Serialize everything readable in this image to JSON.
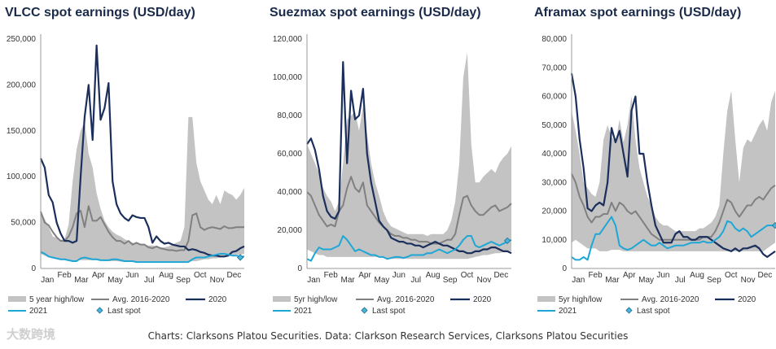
{
  "caption": "Charts: Clarksons Platou Securities. Data: Clarkson Research Services, Clarksons Platou Securities",
  "watermark": "大数跨境",
  "colors": {
    "band": "#c3c3c3",
    "avg": "#808080",
    "y2020": "#1b2f5c",
    "y2021": "#1ea7d6",
    "last": "#4ab3dc"
  },
  "chart_data": [
    {
      "type": "line",
      "title": "VLCC spot earnings (USD/day)",
      "ylim": [
        0,
        250000
      ],
      "yticks": [
        "0",
        "50,000",
        "100,000",
        "150,000",
        "200,000",
        "250,000"
      ],
      "month_labels": [
        "Jan",
        "Feb",
        "Mar",
        "Apr",
        "May",
        "Jun",
        "Jul",
        "Aug",
        "Sep",
        "Oct",
        "Nov",
        "Dec"
      ],
      "weeks": 52,
      "legend": [
        "5 year high/low",
        "Avg. 2016-2020",
        "2020",
        "2021",
        "Last spot"
      ],
      "band_high": [
        62000,
        54000,
        45000,
        35000,
        33000,
        31000,
        32000,
        48000,
        95000,
        130000,
        150000,
        160000,
        125000,
        110000,
        82000,
        65000,
        52000,
        45000,
        40000,
        37000,
        35000,
        32000,
        30000,
        28000,
        27000,
        26000,
        25000,
        25000,
        25000,
        24000,
        23000,
        23000,
        24000,
        26000,
        28000,
        30000,
        45000,
        165000,
        165000,
        115000,
        95000,
        85000,
        75000,
        70000,
        80000,
        70000,
        85000,
        82000,
        80000,
        75000,
        80000,
        88000
      ],
      "band_low": [
        16000,
        14000,
        12000,
        11000,
        10000,
        9000,
        9000,
        8000,
        8000,
        9000,
        9000,
        9000,
        9000,
        9000,
        9000,
        8500,
        8000,
        8000,
        8000,
        8000,
        7500,
        7000,
        7000,
        7000,
        7000,
        7000,
        7000,
        7000,
        7000,
        7000,
        7000,
        7000,
        7000,
        7000,
        7000,
        7000,
        7000,
        7000,
        8000,
        8000,
        9000,
        10000,
        10000,
        11000,
        11000,
        12000,
        13000,
        14000,
        14000,
        15000,
        15000,
        16000
      ],
      "avg": [
        62000,
        50000,
        47000,
        40000,
        34000,
        30000,
        30000,
        35000,
        45000,
        60000,
        63000,
        45000,
        68000,
        52000,
        52000,
        56000,
        48000,
        40000,
        34000,
        30000,
        30000,
        27000,
        30000,
        26000,
        28000,
        26000,
        26000,
        23000,
        22000,
        24000,
        22000,
        21000,
        20000,
        20000,
        19000,
        20000,
        20000,
        30000,
        58000,
        60000,
        45000,
        42000,
        44000,
        45000,
        44000,
        43000,
        46000,
        44000,
        44000,
        45000,
        45000,
        45000
      ],
      "y2020": [
        120000,
        110000,
        80000,
        72000,
        50000,
        38000,
        30000,
        30000,
        28000,
        30000,
        100000,
        165000,
        200000,
        140000,
        243000,
        162000,
        175000,
        202000,
        95000,
        70000,
        60000,
        55000,
        52000,
        58000,
        56000,
        55000,
        55000,
        45000,
        28000,
        35000,
        30000,
        27000,
        28000,
        26000,
        25000,
        24000,
        24000,
        20000,
        21000,
        20000,
        18000,
        17000,
        15000,
        14000,
        14000,
        13000,
        13000,
        14000,
        18000,
        19000,
        22000,
        24000
      ],
      "y2021": [
        18000,
        16000,
        13000,
        12000,
        11000,
        10000,
        10000,
        9000,
        8000,
        8000,
        11000,
        12000,
        11000,
        10000,
        10000,
        9000,
        9000,
        9000,
        10000,
        10000,
        9000,
        8000,
        8000,
        8000,
        7000,
        7000,
        7000,
        7000,
        7000,
        7000,
        7000,
        7000,
        7000,
        7000,
        7000,
        7000,
        7000,
        7000,
        10000,
        12000,
        12000,
        12000,
        13000,
        14000,
        15000,
        16000,
        16000,
        15000,
        14000,
        14000,
        13000,
        13000
      ],
      "last_spot": [
        50,
        12000
      ]
    },
    {
      "type": "line",
      "title": "Suezmax spot earnings (USD/day)",
      "ylim": [
        0,
        120000
      ],
      "yticks": [
        "0",
        "20,000",
        "40,000",
        "60,000",
        "80,000",
        "100,000",
        "120,000"
      ],
      "month_labels": [
        "Jan",
        "Feb",
        "Mar",
        "Apr",
        "May",
        "Jun",
        "Jul",
        "Aug",
        "Sep",
        "Oct",
        "Nov",
        "Dec"
      ],
      "weeks": 52,
      "legend": [
        "5yr high/low",
        "Avg. 2016-2020",
        "2020",
        "2021",
        "Last spot"
      ],
      "band_high": [
        65000,
        60000,
        55000,
        50000,
        42000,
        38000,
        35000,
        30000,
        35000,
        55000,
        78000,
        80000,
        82000,
        72000,
        85000,
        70000,
        55000,
        45000,
        38000,
        30000,
        25000,
        22000,
        21000,
        20000,
        19000,
        18000,
        18000,
        18000,
        18000,
        18000,
        17000,
        18000,
        18000,
        18000,
        18000,
        20000,
        25000,
        35000,
        55000,
        100000,
        113000,
        65000,
        45000,
        45000,
        48000,
        50000,
        52000,
        50000,
        55000,
        58000,
        60000,
        64000
      ],
      "band_low": [
        10000,
        9000,
        8000,
        7000,
        7000,
        6000,
        6000,
        6000,
        6000,
        6000,
        6000,
        6000,
        6000,
        6000,
        6000,
        6000,
        6000,
        6000,
        6000,
        5500,
        5000,
        5000,
        5000,
        5000,
        5000,
        5000,
        5000,
        5000,
        5000,
        5000,
        5000,
        5000,
        5000,
        5000,
        5000,
        5000,
        5000,
        5000,
        5000,
        5000,
        5000,
        5500,
        6000,
        6500,
        7000,
        7000,
        7500,
        8000,
        8000,
        8500,
        9000,
        9000
      ],
      "avg": [
        40000,
        38000,
        33000,
        28000,
        25000,
        22000,
        23000,
        22000,
        30000,
        33000,
        42000,
        48000,
        42000,
        40000,
        45000,
        33000,
        30000,
        27000,
        24000,
        22000,
        20000,
        18000,
        17000,
        17000,
        16000,
        16000,
        15000,
        15000,
        14000,
        14000,
        14000,
        13000,
        13000,
        13000,
        14000,
        15000,
        15000,
        18000,
        28000,
        37000,
        38000,
        33000,
        30000,
        28000,
        28000,
        30000,
        32000,
        33000,
        30000,
        31000,
        32000,
        34000
      ],
      "y2020": [
        65000,
        68000,
        62000,
        52000,
        38000,
        30000,
        27000,
        26000,
        30000,
        108000,
        55000,
        93000,
        78000,
        80000,
        94000,
        60000,
        45000,
        35000,
        25000,
        22000,
        20000,
        16000,
        15000,
        14000,
        14000,
        13000,
        13000,
        12000,
        12000,
        11000,
        12000,
        13000,
        14000,
        13000,
        12000,
        12000,
        11000,
        10000,
        9000,
        9000,
        8000,
        8000,
        9000,
        9000,
        10000,
        10000,
        11000,
        11000,
        10000,
        9000,
        9000,
        8000
      ],
      "y2021": [
        5000,
        4000,
        8000,
        11000,
        10000,
        10000,
        10000,
        11000,
        12000,
        17000,
        15000,
        12000,
        9000,
        10000,
        9000,
        8000,
        7000,
        7000,
        6000,
        6000,
        5000,
        5500,
        6000,
        6000,
        5500,
        6000,
        7000,
        7000,
        7000,
        7000,
        8000,
        8000,
        9000,
        10000,
        9000,
        8000,
        9000,
        10000,
        12000,
        15000,
        17000,
        17000,
        12000,
        11000,
        12000,
        13000,
        14000,
        13000,
        12000,
        13000,
        14000,
        15000
      ],
      "last_spot": [
        50,
        14500
      ]
    },
    {
      "type": "line",
      "title": "Aframax spot earnings (USD/day)",
      "ylim": [
        0,
        80000
      ],
      "yticks": [
        "0",
        "10,000",
        "20,000",
        "30,000",
        "40,000",
        "50,000",
        "60,000",
        "70,000",
        "80,000"
      ],
      "month_labels": [
        "Jan",
        "Feb",
        "Mar",
        "Apr",
        "May",
        "Jun",
        "Jul",
        "Aug",
        "Sep",
        "Oct",
        "Nov",
        "Dec"
      ],
      "weeks": 52,
      "legend": [
        "5yr high/low",
        "Avg. 2016-2020",
        "2020",
        "2021",
        "Last spot"
      ],
      "band_high": [
        55000,
        48000,
        40000,
        30000,
        28000,
        26000,
        25000,
        30000,
        45000,
        50000,
        46000,
        44000,
        52000,
        44000,
        50000,
        60000,
        45000,
        35000,
        30000,
        25000,
        22000,
        18000,
        16000,
        15000,
        15000,
        14000,
        13000,
        13000,
        13000,
        13000,
        13000,
        13000,
        14000,
        14000,
        15000,
        16000,
        18000,
        22000,
        40000,
        55000,
        62000,
        45000,
        30000,
        42000,
        45000,
        44000,
        47000,
        50000,
        52000,
        48000,
        58000,
        62000
      ],
      "band_low": [
        9000,
        10000,
        9000,
        8000,
        7000,
        7000,
        7000,
        6000,
        6000,
        6000,
        6500,
        6500,
        6500,
        6000,
        6000,
        6000,
        6000,
        6000,
        6000,
        6000,
        6000,
        6000,
        6000,
        6000,
        6000,
        6000,
        6000,
        6000,
        6000,
        6000,
        6000,
        6000,
        6000,
        6000,
        6000,
        6000,
        6000,
        6000,
        6000,
        6000,
        6000,
        6000,
        6000,
        6000,
        6000,
        6000,
        6000,
        6000,
        6000,
        7000,
        8000,
        9000
      ],
      "avg": [
        33000,
        30000,
        25000,
        22000,
        18000,
        16000,
        18000,
        18000,
        19000,
        19000,
        23000,
        20000,
        23000,
        22000,
        20000,
        19000,
        20000,
        18000,
        16000,
        14000,
        12000,
        11000,
        10000,
        10000,
        10000,
        10000,
        10000,
        10000,
        10000,
        10000,
        10000,
        10000,
        10000,
        11000,
        11000,
        11000,
        13000,
        16000,
        20000,
        24000,
        23000,
        20000,
        18000,
        20000,
        22000,
        22000,
        24000,
        25000,
        24000,
        26000,
        28000,
        29000
      ],
      "y2020": [
        68000,
        60000,
        45000,
        35000,
        21000,
        20000,
        22000,
        23000,
        22000,
        30000,
        49000,
        44000,
        48000,
        40000,
        32000,
        55000,
        60000,
        40000,
        40000,
        30000,
        22000,
        15000,
        12000,
        9000,
        9000,
        9000,
        12000,
        13000,
        11000,
        11000,
        10000,
        10000,
        11000,
        11000,
        11000,
        10000,
        9000,
        8000,
        7000,
        6500,
        6000,
        7000,
        6000,
        7000,
        7000,
        7500,
        8000,
        7000,
        5000,
        4000,
        5000,
        6000
      ],
      "y2021": [
        4000,
        3000,
        3000,
        4000,
        3000,
        8000,
        12000,
        12000,
        14000,
        16000,
        18000,
        15000,
        8000,
        7000,
        6500,
        7000,
        8000,
        9000,
        10000,
        9000,
        8000,
        8000,
        9000,
        8000,
        7000,
        7500,
        8000,
        8000,
        8000,
        8500,
        9000,
        9000,
        9000,
        9500,
        9000,
        9000,
        10000,
        11000,
        13000,
        16500,
        16000,
        14000,
        13000,
        14000,
        13000,
        11000,
        12000,
        13000,
        14000,
        15000,
        15000,
        15000
      ],
      "last_spot": [
        51,
        15000
      ]
    }
  ]
}
